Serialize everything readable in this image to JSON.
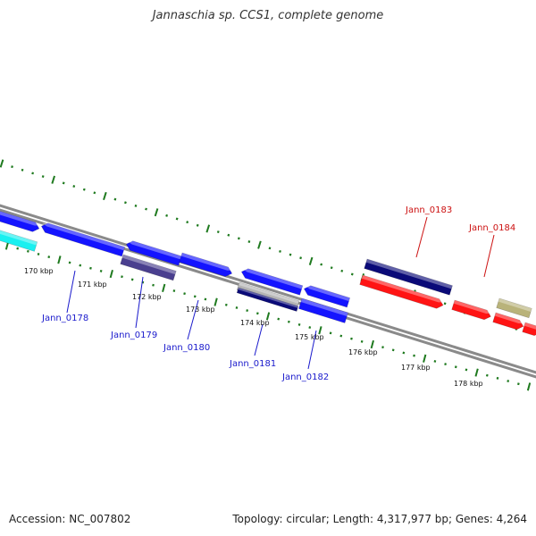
{
  "title": "Jannaschia sp. CCS1, complete genome",
  "footer": {
    "accession": "Accession: NC_007802",
    "summary": "Topology: circular; Length: 4,317,977 bp; Genes: 4,264"
  },
  "colors": {
    "backbone": "#8a8a8a",
    "tick": "#1f7a1f",
    "forward_gene": "#1414ff",
    "dark_gene": "#0a0a78",
    "cyan_gene": "#19f0f0",
    "purple_gene": "#4a3f8f",
    "grey_gene": "#b4b4b4",
    "red_gene": "#ff1414",
    "khaki_gene": "#b9b37a",
    "label_blue": "#1a1acc",
    "label_red": "#cc1111"
  },
  "scale_labels": [
    "170 kbp",
    "171 kbp",
    "172 kbp",
    "173 kbp",
    "174 kbp",
    "175 kbp",
    "176 kbp",
    "177 kbp",
    "178 kbp"
  ],
  "gene_labels": [
    {
      "name": "Jann_0178",
      "strand": "blue"
    },
    {
      "name": "Jann_0179",
      "strand": "blue"
    },
    {
      "name": "Jann_0180",
      "strand": "blue"
    },
    {
      "name": "Jann_0181",
      "strand": "blue"
    },
    {
      "name": "Jann_0182",
      "strand": "blue"
    },
    {
      "name": "Jann_0183",
      "strand": "red"
    },
    {
      "name": "Jann_0184",
      "strand": "red"
    }
  ]
}
